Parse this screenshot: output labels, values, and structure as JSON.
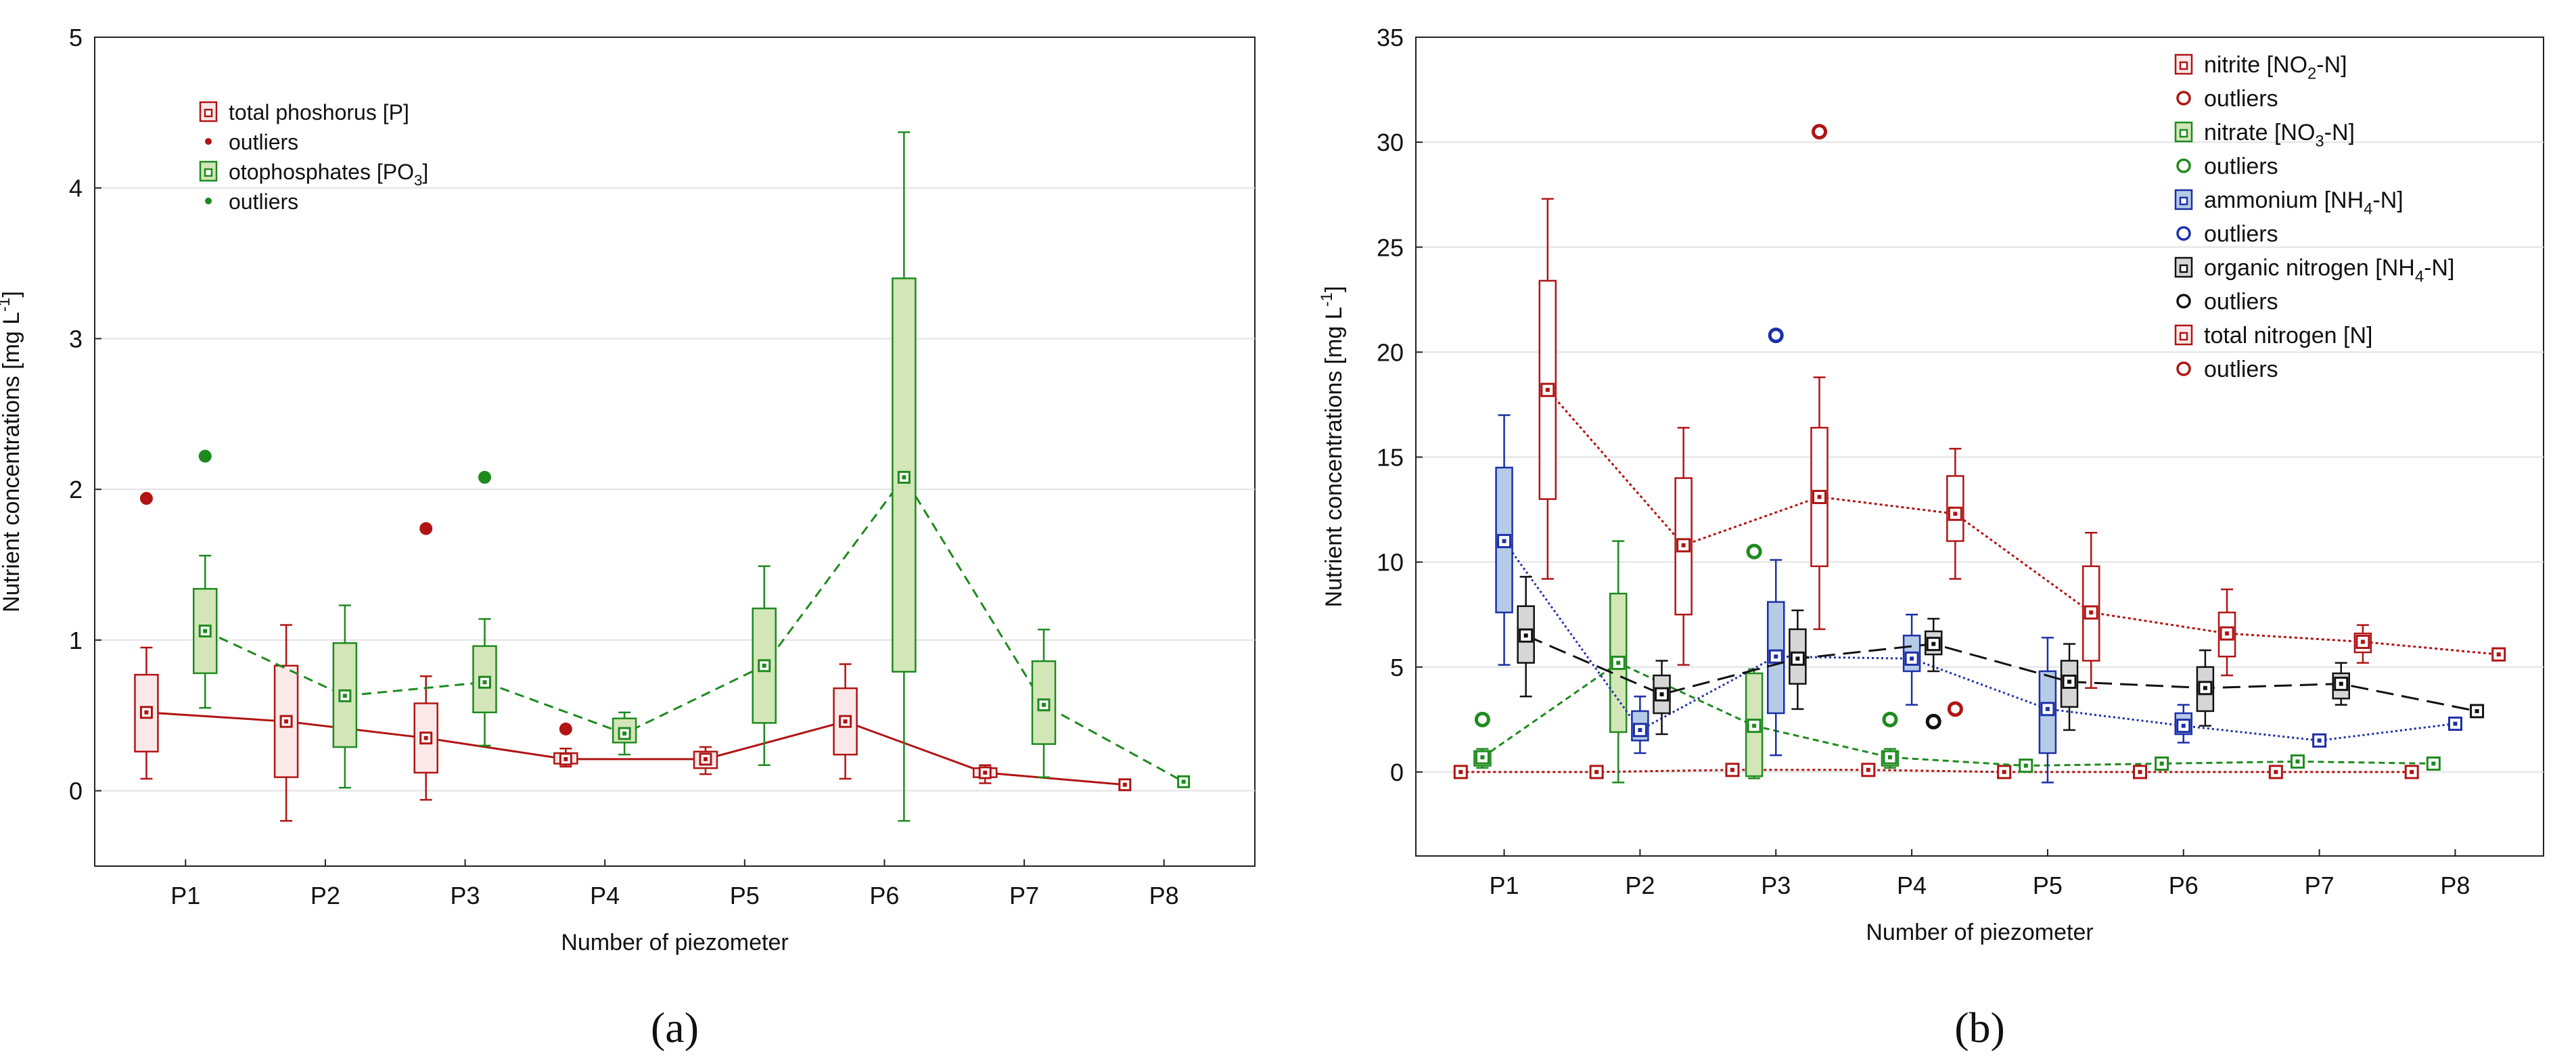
{
  "colors": {
    "red": "#b01414",
    "red_fill": "#fbe9e9",
    "green": "#1e8a1e",
    "green_fill": "#d3e6b8",
    "blue": "#1c2fa8",
    "blue_fill": "#b5cbe6",
    "black": "#111111",
    "gray_fill": "#d6d6d6",
    "grid": "#e2e2e2"
  },
  "chart_data": [
    {
      "type": "box",
      "panel_label": "(a)",
      "title": "",
      "xlabel": "Number of piezometer",
      "ylabel_main": "Nutrient concentrations [mg L",
      "ylabel_sup": "-1",
      "ylabel_end": "]",
      "ylim": [
        -0.5,
        5
      ],
      "yticks": [
        "0",
        "1",
        "2",
        "3",
        "4",
        "5"
      ],
      "categories": [
        "P1",
        "P2",
        "P3",
        "P4",
        "P5",
        "P6",
        "P7",
        "P8"
      ],
      "legend": {
        "position": "top-left",
        "entries": [
          {
            "label": "total phoshorus [P]",
            "kind": "box",
            "color": "red"
          },
          {
            "label": "outliers",
            "kind": "dot",
            "color": "red"
          },
          {
            "label": "otophosphates [PO",
            "sub": "3",
            "end": "]",
            "kind": "box",
            "color": "green"
          },
          {
            "label": " outliers",
            "kind": "dot",
            "color": "green"
          }
        ]
      },
      "series": [
        {
          "name": "total phoshorus [P]",
          "color": "red",
          "fill": "red_fill",
          "dash": "",
          "offset": -0.28,
          "medians": [
            0.52,
            0.46,
            0.35,
            0.21,
            0.21,
            0.46,
            0.12,
            0.04
          ],
          "q1": [
            0.26,
            0.09,
            0.12,
            0.18,
            0.15,
            0.24,
            0.09,
            null
          ],
          "q3": [
            0.77,
            0.83,
            0.58,
            0.25,
            0.26,
            0.68,
            0.15,
            null
          ],
          "min": [
            0.08,
            -0.2,
            -0.06,
            0.16,
            0.11,
            0.08,
            0.05,
            null
          ],
          "max": [
            0.95,
            1.1,
            0.76,
            0.28,
            0.29,
            0.84,
            0.17,
            null
          ],
          "outliers": [
            {
              "x": "P1",
              "y": 1.94
            },
            {
              "x": "P3",
              "y": 1.74
            },
            {
              "x": "P4",
              "y": 0.41
            }
          ]
        },
        {
          "name": "otophosphates [PO3]",
          "color": "green",
          "fill": "green_fill",
          "dash": "14 9",
          "offset": 0.14,
          "medians": [
            1.06,
            0.63,
            0.72,
            0.38,
            0.83,
            2.08,
            0.57,
            0.06
          ],
          "q1": [
            0.78,
            0.29,
            0.52,
            0.32,
            0.45,
            0.79,
            0.31,
            null
          ],
          "q3": [
            1.34,
            0.98,
            0.96,
            0.48,
            1.21,
            3.4,
            0.86,
            null
          ],
          "min": [
            0.55,
            0.02,
            0.3,
            0.24,
            0.17,
            -0.2,
            0.09,
            null
          ],
          "max": [
            1.56,
            1.23,
            1.14,
            0.52,
            1.49,
            4.37,
            1.07,
            null
          ],
          "outliers": [
            {
              "x": "P1",
              "y": 2.22
            },
            {
              "x": "P3",
              "y": 2.08
            }
          ]
        }
      ]
    },
    {
      "type": "box",
      "panel_label": "(b)",
      "title": "",
      "xlabel": "Number of piezometer",
      "ylabel_main": "Nutrient concentrations [mg L",
      "ylabel_sup": "-1",
      "ylabel_end": "]",
      "ylim": [
        -4,
        35
      ],
      "yticks": [
        "0",
        "5",
        "10",
        "15",
        "20",
        "25",
        "30",
        "35"
      ],
      "categories": [
        "P1",
        "P2",
        "P3",
        "P4",
        "P5",
        "P6",
        "P7",
        "P8"
      ],
      "legend": {
        "position": "top-right",
        "entries": [
          {
            "label": "nitrite [NO",
            "sub": "2",
            "end": "-N]",
            "kind": "box",
            "color": "red"
          },
          {
            "label": "outliers",
            "kind": "ring",
            "color": "red"
          },
          {
            "label": "nitrate [NO",
            "sub": "3",
            "end": "-N]",
            "kind": "box",
            "color": "green"
          },
          {
            "label": "outliers",
            "kind": "ring",
            "color": "green"
          },
          {
            "label": "ammonium [NH",
            "sub": "4",
            "end": "-N]",
            "kind": "box",
            "color": "blue"
          },
          {
            "label": "outliers",
            "kind": "ring",
            "color": "blue"
          },
          {
            "label": "organic nitrogen [NH",
            "sub": "4",
            "end": "-N]",
            "kind": "box",
            "color": "black"
          },
          {
            "label": "outliers",
            "kind": "ring",
            "color": "black"
          },
          {
            "label": "total nitrogen [N]",
            "kind": "box",
            "color": "red"
          },
          {
            "label": "outliers",
            "kind": "ring",
            "color": "red"
          }
        ]
      },
      "series": [
        {
          "name": "nitrite [NO2-N]",
          "color": "red",
          "fill": "none",
          "dash": "4 4",
          "offset": -0.32,
          "medians": [
            0.0,
            0.0,
            0.1,
            0.1,
            0.0,
            0.0,
            0.0,
            0.0
          ],
          "q1": [
            null,
            null,
            null,
            null,
            null,
            null,
            null,
            null
          ],
          "q3": [
            null,
            null,
            null,
            null,
            null,
            null,
            null,
            null
          ],
          "min": [
            null,
            null,
            null,
            null,
            null,
            null,
            null,
            null
          ],
          "max": [
            null,
            null,
            null,
            null,
            null,
            null,
            null,
            null
          ],
          "outliers": []
        },
        {
          "name": "nitrate [NO3-N]",
          "color": "green",
          "fill": "green_fill",
          "dash": "9 6",
          "offset": -0.16,
          "medians": [
            0.7,
            5.2,
            2.2,
            0.7,
            0.3,
            0.4,
            0.5,
            0.4
          ],
          "q1": [
            0.3,
            1.9,
            -0.2,
            0.3,
            null,
            null,
            null,
            null
          ],
          "q3": [
            1.0,
            8.5,
            4.7,
            1.0,
            null,
            null,
            null,
            null
          ],
          "min": [
            0.2,
            -0.5,
            -0.3,
            0.2,
            null,
            null,
            null,
            null
          ],
          "max": [
            1.1,
            11.0,
            4.9,
            1.1,
            null,
            null,
            null,
            null
          ],
          "outliers": [
            {
              "x": "P1",
              "y": 2.5
            },
            {
              "x": "P3",
              "y": 10.5
            },
            {
              "x": "P4",
              "y": 2.5
            }
          ]
        },
        {
          "name": "ammonium [NH4-N]",
          "color": "blue",
          "fill": "blue_fill",
          "dash": "3 4",
          "offset": 0.0,
          "medians": [
            11.0,
            2.0,
            5.5,
            5.4,
            3.0,
            2.2,
            1.5,
            2.3
          ],
          "q1": [
            7.6,
            1.5,
            2.8,
            4.8,
            0.9,
            1.8,
            null,
            null
          ],
          "q3": [
            14.5,
            2.9,
            8.1,
            6.5,
            4.8,
            2.8,
            null,
            null
          ],
          "min": [
            5.1,
            0.9,
            0.8,
            3.2,
            -0.5,
            1.4,
            null,
            null
          ],
          "max": [
            17.0,
            3.6,
            10.1,
            7.5,
            6.4,
            3.2,
            null,
            null
          ],
          "outliers": [
            {
              "x": "P3",
              "y": 20.8
            }
          ]
        },
        {
          "name": "organic nitrogen [NH4-N]",
          "color": "black",
          "fill": "gray_fill",
          "dash": "26 12",
          "offset": 0.16,
          "medians": [
            6.5,
            3.7,
            5.4,
            6.1,
            4.3,
            4.0,
            4.2,
            2.9
          ],
          "q1": [
            5.2,
            2.8,
            4.2,
            5.6,
            3.1,
            2.9,
            3.5,
            null
          ],
          "q3": [
            7.9,
            4.6,
            6.8,
            6.7,
            5.3,
            5.0,
            4.7,
            null
          ],
          "min": [
            3.6,
            1.8,
            3.0,
            4.8,
            2.0,
            2.2,
            3.2,
            null
          ],
          "max": [
            9.3,
            5.3,
            7.7,
            7.3,
            6.1,
            5.8,
            5.2,
            null
          ],
          "outliers": [
            {
              "x": "P4",
              "y": 2.4
            }
          ]
        },
        {
          "name": "total nitrogen [N]",
          "color": "red",
          "fill": "none",
          "dash": "4 4",
          "offset": 0.32,
          "medians": [
            18.2,
            10.8,
            13.1,
            12.3,
            7.6,
            6.6,
            6.2,
            5.6
          ],
          "q1": [
            13.0,
            7.5,
            9.8,
            11.0,
            5.3,
            5.5,
            5.7,
            null
          ],
          "q3": [
            23.4,
            14.0,
            16.4,
            14.1,
            9.8,
            7.6,
            6.6,
            null
          ],
          "min": [
            9.2,
            5.1,
            6.8,
            9.2,
            4.0,
            4.6,
            5.2,
            null
          ],
          "max": [
            27.3,
            16.4,
            18.8,
            15.4,
            11.4,
            8.7,
            7.0,
            null
          ],
          "outliers": [
            {
              "x": "P3",
              "y": 30.5
            },
            {
              "x": "P4",
              "y": 3.0
            }
          ]
        }
      ]
    }
  ]
}
